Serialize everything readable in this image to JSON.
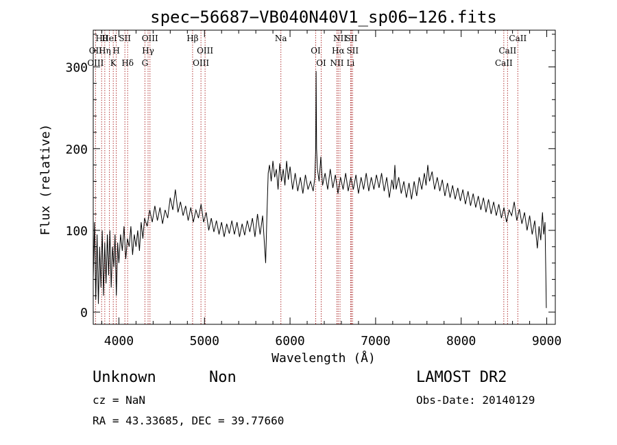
{
  "chart_data": {
    "type": "line",
    "title": "spec−56687−VB040N40V1_sp06−126.fits",
    "xlabel": "Wavelength (Å)",
    "ylabel": "Flux (relative)",
    "xlim": [
      3700,
      9100
    ],
    "ylim": [
      -15,
      345
    ],
    "xticks": [
      4000,
      5000,
      6000,
      7000,
      8000,
      9000
    ],
    "yticks": [
      0,
      100,
      200,
      300
    ],
    "grid": false,
    "series": [
      {
        "points": [
          [
            3700,
            40
          ],
          [
            3715,
            110
          ],
          [
            3730,
            15
          ],
          [
            3745,
            95
          ],
          [
            3760,
            10
          ],
          [
            3775,
            80
          ],
          [
            3790,
            30
          ],
          [
            3805,
            100
          ],
          [
            3820,
            20
          ],
          [
            3835,
            85
          ],
          [
            3850,
            35
          ],
          [
            3865,
            95
          ],
          [
            3880,
            45
          ],
          [
            3895,
            100
          ],
          [
            3910,
            30
          ],
          [
            3925,
            80
          ],
          [
            3940,
            55
          ],
          [
            3955,
            95
          ],
          [
            3970,
            20
          ],
          [
            3985,
            85
          ],
          [
            4000,
            60
          ],
          [
            4020,
            95
          ],
          [
            4040,
            75
          ],
          [
            4060,
            105
          ],
          [
            4080,
            65
          ],
          [
            4100,
            90
          ],
          [
            4120,
            80
          ],
          [
            4140,
            105
          ],
          [
            4160,
            70
          ],
          [
            4180,
            95
          ],
          [
            4200,
            80
          ],
          [
            4220,
            100
          ],
          [
            4240,
            75
          ],
          [
            4260,
            110
          ],
          [
            4280,
            90
          ],
          [
            4300,
            115
          ],
          [
            4330,
            105
          ],
          [
            4360,
            125
          ],
          [
            4390,
            110
          ],
          [
            4420,
            130
          ],
          [
            4450,
            112
          ],
          [
            4480,
            128
          ],
          [
            4510,
            108
          ],
          [
            4540,
            125
          ],
          [
            4570,
            115
          ],
          [
            4600,
            140
          ],
          [
            4630,
            125
          ],
          [
            4660,
            150
          ],
          [
            4690,
            122
          ],
          [
            4720,
            135
          ],
          [
            4750,
            118
          ],
          [
            4780,
            130
          ],
          [
            4810,
            112
          ],
          [
            4840,
            128
          ],
          [
            4870,
            110
          ],
          [
            4900,
            125
          ],
          [
            4930,
            115
          ],
          [
            4960,
            132
          ],
          [
            4990,
            110
          ],
          [
            5020,
            122
          ],
          [
            5050,
            100
          ],
          [
            5080,
            115
          ],
          [
            5110,
            98
          ],
          [
            5140,
            112
          ],
          [
            5170,
            95
          ],
          [
            5200,
            110
          ],
          [
            5230,
            92
          ],
          [
            5260,
            108
          ],
          [
            5290,
            96
          ],
          [
            5320,
            112
          ],
          [
            5350,
            95
          ],
          [
            5380,
            110
          ],
          [
            5410,
            92
          ],
          [
            5440,
            108
          ],
          [
            5470,
            94
          ],
          [
            5500,
            112
          ],
          [
            5530,
            98
          ],
          [
            5560,
            115
          ],
          [
            5590,
            92
          ],
          [
            5620,
            120
          ],
          [
            5650,
            95
          ],
          [
            5680,
            118
          ],
          [
            5700,
            85
          ],
          [
            5715,
            60
          ],
          [
            5730,
            120
          ],
          [
            5745,
            170
          ],
          [
            5760,
            180
          ],
          [
            5780,
            160
          ],
          [
            5800,
            185
          ],
          [
            5820,
            165
          ],
          [
            5840,
            175
          ],
          [
            5860,
            150
          ],
          [
            5880,
            182
          ],
          [
            5900,
            160
          ],
          [
            5920,
            175
          ],
          [
            5940,
            155
          ],
          [
            5960,
            185
          ],
          [
            5980,
            162
          ],
          [
            6000,
            178
          ],
          [
            6030,
            150
          ],
          [
            6060,
            170
          ],
          [
            6090,
            148
          ],
          [
            6120,
            165
          ],
          [
            6150,
            145
          ],
          [
            6180,
            168
          ],
          [
            6210,
            150
          ],
          [
            6240,
            160
          ],
          [
            6270,
            148
          ],
          [
            6290,
            165
          ],
          [
            6300,
            200
          ],
          [
            6305,
            295
          ],
          [
            6310,
            200
          ],
          [
            6320,
            175
          ],
          [
            6340,
            160
          ],
          [
            6360,
            190
          ],
          [
            6380,
            155
          ],
          [
            6410,
            170
          ],
          [
            6440,
            150
          ],
          [
            6470,
            175
          ],
          [
            6500,
            152
          ],
          [
            6530,
            168
          ],
          [
            6560,
            145
          ],
          [
            6590,
            165
          ],
          [
            6620,
            150
          ],
          [
            6650,
            170
          ],
          [
            6680,
            148
          ],
          [
            6710,
            165
          ],
          [
            6740,
            150
          ],
          [
            6770,
            168
          ],
          [
            6800,
            145
          ],
          [
            6830,
            165
          ],
          [
            6860,
            150
          ],
          [
            6890,
            170
          ],
          [
            6920,
            148
          ],
          [
            6950,
            165
          ],
          [
            6980,
            150
          ],
          [
            7010,
            168
          ],
          [
            7040,
            152
          ],
          [
            7070,
            170
          ],
          [
            7100,
            148
          ],
          [
            7130,
            165
          ],
          [
            7160,
            140
          ],
          [
            7190,
            162
          ],
          [
            7210,
            150
          ],
          [
            7225,
            180
          ],
          [
            7240,
            150
          ],
          [
            7270,
            165
          ],
          [
            7300,
            145
          ],
          [
            7330,
            160
          ],
          [
            7360,
            140
          ],
          [
            7390,
            158
          ],
          [
            7420,
            138
          ],
          [
            7450,
            160
          ],
          [
            7480,
            142
          ],
          [
            7510,
            165
          ],
          [
            7540,
            150
          ],
          [
            7570,
            170
          ],
          [
            7590,
            155
          ],
          [
            7610,
            180
          ],
          [
            7630,
            160
          ],
          [
            7660,
            172
          ],
          [
            7690,
            150
          ],
          [
            7720,
            165
          ],
          [
            7750,
            148
          ],
          [
            7780,
            162
          ],
          [
            7810,
            142
          ],
          [
            7840,
            158
          ],
          [
            7870,
            140
          ],
          [
            7900,
            155
          ],
          [
            7930,
            138
          ],
          [
            7960,
            152
          ],
          [
            7990,
            136
          ],
          [
            8020,
            150
          ],
          [
            8050,
            132
          ],
          [
            8080,
            148
          ],
          [
            8110,
            130
          ],
          [
            8140,
            145
          ],
          [
            8170,
            128
          ],
          [
            8200,
            142
          ],
          [
            8230,
            125
          ],
          [
            8260,
            140
          ],
          [
            8290,
            122
          ],
          [
            8320,
            138
          ],
          [
            8350,
            120
          ],
          [
            8380,
            135
          ],
          [
            8410,
            118
          ],
          [
            8440,
            132
          ],
          [
            8470,
            115
          ],
          [
            8500,
            128
          ],
          [
            8530,
            110
          ],
          [
            8560,
            125
          ],
          [
            8590,
            118
          ],
          [
            8620,
            135
          ],
          [
            8650,
            112
          ],
          [
            8680,
            126
          ],
          [
            8710,
            108
          ],
          [
            8740,
            122
          ],
          [
            8770,
            100
          ],
          [
            8800,
            118
          ],
          [
            8830,
            95
          ],
          [
            8860,
            112
          ],
          [
            8890,
            78
          ],
          [
            8910,
            105
          ],
          [
            8930,
            88
          ],
          [
            8950,
            122
          ],
          [
            8965,
            95
          ],
          [
            8980,
            110
          ],
          [
            8990,
            40
          ],
          [
            8995,
            5
          ]
        ]
      }
    ],
    "line_markers": [
      {
        "label": "Hθ",
        "x": 3798
      },
      {
        "label": "OII",
        "x": 3727
      },
      {
        "label": "OIII",
        "x": 3727
      },
      {
        "label": "HeI",
        "x": 3889
      },
      {
        "label": "Hη",
        "x": 3835
      },
      {
        "label": "K",
        "x": 3934
      },
      {
        "label": "SII",
        "x": 4070
      },
      {
        "label": "H",
        "x": 3969
      },
      {
        "label": "Hδ",
        "x": 4102
      },
      {
        "label": "OIII",
        "x": 4363
      },
      {
        "label": "Hγ",
        "x": 4341
      },
      {
        "label": "G",
        "x": 4304
      },
      {
        "label": "Hβ",
        "x": 4861
      },
      {
        "label": "OIII",
        "x": 5007
      },
      {
        "label": "OIII",
        "x": 4959
      },
      {
        "label": "Na",
        "x": 5893
      },
      {
        "label": "OI",
        "x": 6300
      },
      {
        "label": "OI",
        "x": 6364
      },
      {
        "label": "NII",
        "x": 6584
      },
      {
        "label": "Hα",
        "x": 6563
      },
      {
        "label": "NII",
        "x": 6548
      },
      {
        "label": "SII",
        "x": 6717
      },
      {
        "label": "SII",
        "x": 6731
      },
      {
        "label": "Li",
        "x": 6708
      },
      {
        "label": "CaII",
        "x": 8662
      },
      {
        "label": "CaII",
        "x": 8542
      },
      {
        "label": "CaII",
        "x": 8498
      }
    ]
  },
  "info": {
    "object_class": "Unknown",
    "object_subclass": "Non",
    "survey": "LAMOST DR2",
    "redshift": "cz = NaN",
    "obs_date": "Obs-Date: 20140129",
    "coords": "RA =  43.33685, DEC =  39.77660"
  },
  "colors": {
    "spectrum": "#000000",
    "line_marker": "#b03030",
    "axis": "#000000",
    "background": "#ffffff"
  }
}
